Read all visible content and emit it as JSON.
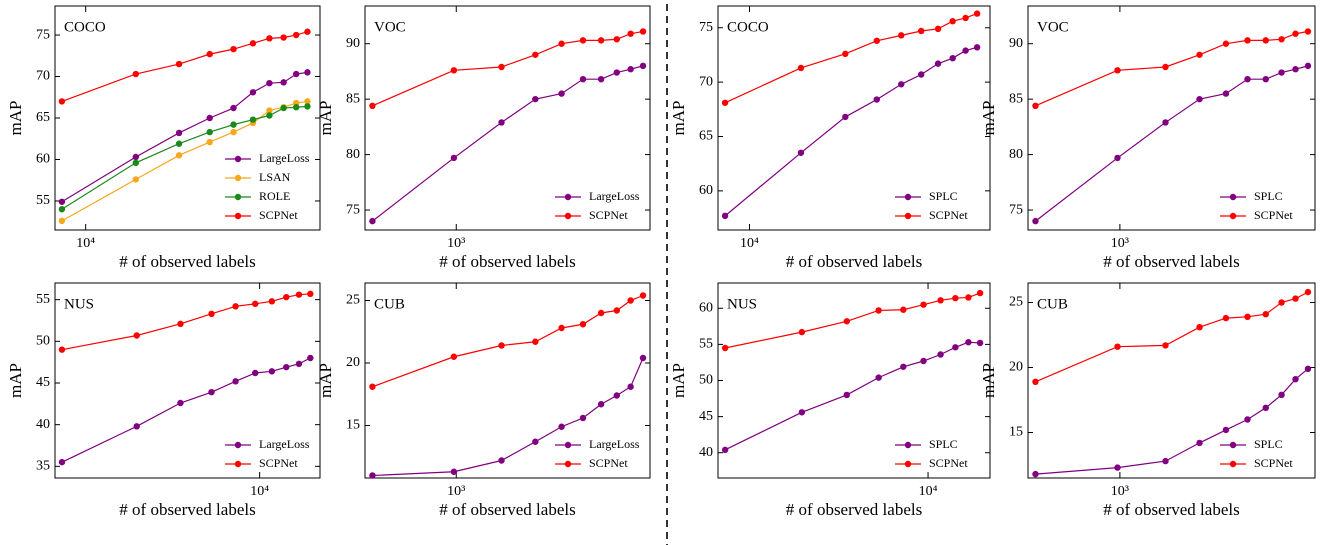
{
  "chart_data": [
    {
      "type": "line",
      "title": "COCO",
      "xlabel": "# of observed labels",
      "ylabel": "mAP",
      "log_x": true,
      "legend": "lower right",
      "x": [
        8000,
        16000,
        24000,
        32000,
        40000,
        48000,
        56000,
        64000,
        72000,
        80000
      ],
      "xlim": [
        7500,
        90000
      ],
      "xticks": [
        {
          "value": 10000,
          "label": "10⁴"
        }
      ],
      "ylim": [
        51.5,
        78.5
      ],
      "yticks": [
        55,
        60,
        65,
        70,
        75
      ],
      "series": [
        {
          "name": "LargeLoss",
          "color": "#800080",
          "values": [
            54.9,
            60.3,
            63.2,
            65.0,
            66.2,
            68.1,
            69.2,
            69.3,
            70.3,
            70.5
          ]
        },
        {
          "name": "LSAN",
          "color": "#f5a81c",
          "values": [
            52.6,
            57.6,
            60.5,
            62.1,
            63.3,
            64.4,
            65.9,
            66.3,
            66.8,
            67.0
          ]
        },
        {
          "name": "ROLE",
          "color": "#1a8a1a",
          "values": [
            54.0,
            59.6,
            61.9,
            63.3,
            64.2,
            64.8,
            65.3,
            66.2,
            66.3,
            66.4
          ]
        },
        {
          "name": "SCPNet",
          "color": "#ff0000",
          "values": [
            67.0,
            70.3,
            71.5,
            72.7,
            73.3,
            74.0,
            74.6,
            74.7,
            75.0,
            75.4
          ]
        }
      ]
    },
    {
      "type": "line",
      "title": "VOC",
      "xlabel": "# of observed labels",
      "ylabel": "mAP",
      "log_x": true,
      "legend": "lower right",
      "x": [
        490,
        980,
        1470,
        1960,
        2450,
        2940,
        3430,
        3920,
        4410,
        4900
      ],
      "xlim": [
        460,
        5200
      ],
      "xticks": [
        {
          "value": 1000,
          "label": "10³"
        }
      ],
      "ylim": [
        73.2,
        93.4
      ],
      "yticks": [
        75,
        80,
        85,
        90
      ],
      "series": [
        {
          "name": "LargeLoss",
          "color": "#800080",
          "values": [
            74.0,
            79.7,
            82.9,
            85.0,
            85.5,
            86.8,
            86.8,
            87.4,
            87.7,
            88.0
          ]
        },
        {
          "name": "SCPNet",
          "color": "#ff0000",
          "values": [
            84.4,
            87.6,
            87.9,
            89.0,
            90.0,
            90.3,
            90.3,
            90.4,
            90.9,
            91.1
          ]
        }
      ]
    },
    {
      "type": "line",
      "title": "COCO",
      "xlabel": "# of observed labels",
      "ylabel": "mAP",
      "log_x": true,
      "legend": "lower right",
      "x": [
        8000,
        16000,
        24000,
        32000,
        40000,
        48000,
        56000,
        64000,
        72000,
        80000
      ],
      "xlim": [
        7500,
        90000
      ],
      "xticks": [
        {
          "value": 10000,
          "label": "10⁴"
        }
      ],
      "ylim": [
        56.4,
        77.0
      ],
      "yticks": [
        60,
        65,
        70,
        75
      ],
      "series": [
        {
          "name": "SPLC",
          "color": "#800080",
          "values": [
            57.7,
            63.5,
            66.8,
            68.4,
            69.8,
            70.7,
            71.7,
            72.2,
            72.9,
            73.2
          ]
        },
        {
          "name": "SCPNet",
          "color": "#ff0000",
          "values": [
            68.1,
            71.3,
            72.6,
            73.8,
            74.3,
            74.7,
            74.9,
            75.6,
            75.9,
            76.3
          ]
        }
      ]
    },
    {
      "type": "line",
      "title": "VOC",
      "xlabel": "# of observed labels",
      "ylabel": "mAP",
      "log_x": true,
      "legend": "lower right",
      "x": [
        490,
        980,
        1470,
        1960,
        2450,
        2940,
        3430,
        3920,
        4410,
        4900
      ],
      "xlim": [
        460,
        5200
      ],
      "xticks": [
        {
          "value": 1000,
          "label": "10³"
        }
      ],
      "ylim": [
        73.2,
        93.4
      ],
      "yticks": [
        75,
        80,
        85,
        90
      ],
      "series": [
        {
          "name": "SPLC",
          "color": "#800080",
          "values": [
            74.0,
            79.7,
            82.9,
            85.0,
            85.5,
            86.8,
            86.8,
            87.4,
            87.7,
            88.0
          ]
        },
        {
          "name": "SCPNet",
          "color": "#ff0000",
          "values": [
            84.4,
            87.6,
            87.9,
            89.0,
            90.0,
            90.3,
            90.3,
            90.4,
            90.9,
            91.1
          ]
        }
      ]
    },
    {
      "type": "line",
      "title": "NUS",
      "xlabel": "# of observed labels",
      "ylabel": "mAP",
      "log_x": true,
      "legend": "lower right",
      "x": [
        1600,
        3200,
        4800,
        6400,
        8000,
        9600,
        11200,
        12800,
        14400,
        16000
      ],
      "xlim": [
        1500,
        17500
      ],
      "xticks": [
        {
          "value": 10000,
          "label": "10⁴"
        }
      ],
      "ylim": [
        33.6,
        57.0
      ],
      "yticks": [
        35,
        40,
        45,
        50,
        55
      ],
      "series": [
        {
          "name": "LargeLoss",
          "color": "#800080",
          "values": [
            35.5,
            39.8,
            42.6,
            43.9,
            45.2,
            46.2,
            46.4,
            46.9,
            47.3,
            48.0
          ]
        },
        {
          "name": "SCPNet",
          "color": "#ff0000",
          "values": [
            49.0,
            50.7,
            52.1,
            53.3,
            54.2,
            54.5,
            54.8,
            55.3,
            55.6,
            55.7
          ]
        }
      ]
    },
    {
      "type": "line",
      "title": "CUB",
      "xlabel": "# of observed labels",
      "ylabel": "mAP",
      "log_x": true,
      "legend": "lower right",
      "x": [
        490,
        980,
        1470,
        1960,
        2450,
        2940,
        3430,
        3920,
        4410,
        4900
      ],
      "xlim": [
        460,
        5200
      ],
      "xticks": [
        {
          "value": 1000,
          "label": "10³"
        }
      ],
      "ylim": [
        10.8,
        26.4
      ],
      "yticks": [
        15,
        20,
        25
      ],
      "series": [
        {
          "name": "LargeLoss",
          "color": "#800080",
          "values": [
            11.0,
            11.3,
            12.2,
            13.7,
            14.9,
            15.6,
            16.7,
            17.4,
            18.1,
            20.4
          ]
        },
        {
          "name": "SCPNet",
          "color": "#ff0000",
          "values": [
            18.1,
            20.5,
            21.4,
            21.7,
            22.8,
            23.1,
            24.0,
            24.2,
            25.0,
            25.4
          ]
        }
      ]
    },
    {
      "type": "line",
      "title": "NUS",
      "xlabel": "# of observed labels",
      "ylabel": "mAP",
      "log_x": true,
      "legend": "lower right",
      "x": [
        1600,
        3200,
        4800,
        6400,
        8000,
        9600,
        11200,
        12800,
        14400,
        16000
      ],
      "xlim": [
        1500,
        17500
      ],
      "xticks": [
        {
          "value": 10000,
          "label": "10⁴"
        }
      ],
      "ylim": [
        36.5,
        63.5
      ],
      "yticks": [
        40,
        45,
        50,
        55,
        60
      ],
      "series": [
        {
          "name": "SPLC",
          "color": "#800080",
          "values": [
            40.4,
            45.6,
            48.0,
            50.4,
            51.9,
            52.7,
            53.6,
            54.6,
            55.3,
            55.2
          ]
        },
        {
          "name": "SCPNet",
          "color": "#ff0000",
          "values": [
            54.5,
            56.7,
            58.2,
            59.7,
            59.8,
            60.5,
            61.1,
            61.4,
            61.5,
            62.1
          ]
        }
      ]
    },
    {
      "type": "line",
      "title": "CUB",
      "xlabel": "# of observed labels",
      "ylabel": "mAP",
      "log_x": true,
      "legend": "lower right",
      "x": [
        490,
        980,
        1470,
        1960,
        2450,
        2940,
        3430,
        3920,
        4410,
        4900
      ],
      "xlim": [
        460,
        5200
      ],
      "xticks": [
        {
          "value": 1000,
          "label": "10³"
        }
      ],
      "ylim": [
        11.5,
        26.5
      ],
      "yticks": [
        15,
        20,
        25
      ],
      "series": [
        {
          "name": "SPLC",
          "color": "#800080",
          "values": [
            11.8,
            12.3,
            12.8,
            14.2,
            15.2,
            16.0,
            16.9,
            17.9,
            19.1,
            19.9
          ]
        },
        {
          "name": "SCPNet",
          "color": "#ff0000",
          "values": [
            18.9,
            21.6,
            21.7,
            23.1,
            23.8,
            23.9,
            24.1,
            25.0,
            25.3,
            25.8
          ]
        }
      ]
    }
  ]
}
